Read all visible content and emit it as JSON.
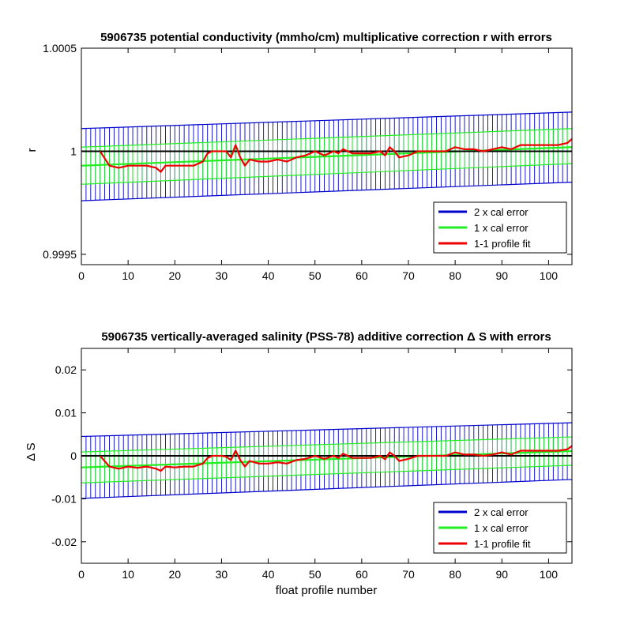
{
  "chart_data": [
    {
      "type": "line",
      "title": "5906735 potential conductivity (mmho/cm) multiplicative correction r with errors",
      "xlabel": "",
      "ylabel": "r",
      "xlim": [
        0,
        105
      ],
      "ylim": [
        0.99945,
        1.0005
      ],
      "xticks": [
        0,
        10,
        20,
        30,
        40,
        50,
        60,
        70,
        80,
        90,
        100
      ],
      "xtick_labels": [
        "0",
        "10",
        "20",
        "30",
        "40",
        "50",
        "60",
        "70",
        "80",
        "90",
        "100"
      ],
      "yticks": [
        0.9995,
        1,
        1.0005
      ],
      "ytick_labels": [
        "0.9995",
        "1",
        "1.0005"
      ],
      "grid": false,
      "legend": "bottom-right",
      "reference_line": 1,
      "series": [
        {
          "name": "2 x cal error",
          "color": "#0000cc",
          "x": [
            0,
            105
          ],
          "lower": [
            0.99976,
            0.99985
          ],
          "upper": [
            1.00011,
            1.00019
          ]
        },
        {
          "name": "1 x cal error",
          "color": "#22ee22",
          "x": [
            0,
            105
          ],
          "center": [
            0.99993,
            1.00002
          ],
          "lower": [
            0.99984,
            0.99994
          ],
          "upper": [
            1.00002,
            1.00011
          ]
        },
        {
          "name": "1-1 profile fit",
          "color": "#ee0000",
          "x": [
            4,
            6,
            8,
            10,
            12,
            14,
            16,
            17,
            18,
            20,
            22,
            24,
            26,
            27,
            28,
            30,
            31,
            32,
            33,
            34,
            35,
            36,
            38,
            40,
            42,
            44,
            46,
            48,
            50,
            52,
            54,
            55,
            56,
            58,
            60,
            62,
            64,
            65,
            66,
            67,
            68,
            70,
            72,
            74,
            76,
            78,
            80,
            82,
            84,
            86,
            88,
            90,
            92,
            94,
            96,
            98,
            100,
            102,
            104,
            105
          ],
          "y": [
            1.0,
            0.99993,
            0.99992,
            0.99993,
            0.99993,
            0.99993,
            0.99992,
            0.9999,
            0.99993,
            0.99993,
            0.99993,
            0.99993,
            0.99995,
            0.99999,
            1.0,
            1.0,
            1.0,
            0.99997,
            1.00003,
            0.99997,
            0.99993,
            0.99996,
            0.99995,
            0.99995,
            0.99996,
            0.99995,
            0.99997,
            0.99998,
            1.0,
            0.99998,
            1.0,
            0.99999,
            1.00001,
            0.99999,
            0.99999,
            0.99999,
            1.0,
            0.99998,
            1.00002,
            1.0,
            0.99997,
            0.99998,
            1.0,
            1.0,
            1.0,
            1.0,
            1.00002,
            1.00001,
            1.00001,
            1.0,
            1.00001,
            1.00002,
            1.00001,
            1.00003,
            1.00003,
            1.00003,
            1.00003,
            1.00003,
            1.00004,
            1.00006
          ]
        }
      ]
    },
    {
      "type": "line",
      "title": "5906735 vertically-averaged salinity (PSS-78) additive correction Δ S with errors",
      "xlabel": "float profile number",
      "ylabel": "Δ S",
      "xlim": [
        0,
        105
      ],
      "ylim": [
        -0.025,
        0.025
      ],
      "xticks": [
        0,
        10,
        20,
        30,
        40,
        50,
        60,
        70,
        80,
        90,
        100
      ],
      "xtick_labels": [
        "0",
        "10",
        "20",
        "30",
        "40",
        "50",
        "60",
        "70",
        "80",
        "90",
        "100"
      ],
      "yticks": [
        -0.02,
        -0.01,
        0,
        0.01,
        0.02
      ],
      "ytick_labels": [
        "-0.02",
        "-0.01",
        "0",
        "0.01",
        "0.02"
      ],
      "grid": false,
      "legend": "bottom-right",
      "reference_line": 0,
      "series": [
        {
          "name": "2 x cal error",
          "color": "#0000cc",
          "x": [
            0,
            105
          ],
          "lower": [
            -0.0099,
            -0.0055
          ],
          "upper": [
            0.0045,
            0.0077
          ]
        },
        {
          "name": "1 x cal error",
          "color": "#22ee22",
          "x": [
            0,
            105
          ],
          "center": [
            -0.0027,
            0.0011
          ],
          "lower": [
            -0.0063,
            -0.0022
          ],
          "upper": [
            0.0009,
            0.0044
          ]
        },
        {
          "name": "1-1 profile fit",
          "color": "#ee0000",
          "x": [
            4,
            6,
            8,
            10,
            12,
            14,
            16,
            17,
            18,
            20,
            22,
            24,
            26,
            27,
            28,
            30,
            31,
            32,
            33,
            34,
            35,
            36,
            38,
            40,
            42,
            44,
            46,
            48,
            50,
            52,
            54,
            55,
            56,
            58,
            60,
            62,
            64,
            65,
            66,
            67,
            68,
            70,
            72,
            74,
            76,
            78,
            80,
            82,
            84,
            86,
            88,
            90,
            92,
            94,
            96,
            98,
            100,
            102,
            104,
            105
          ],
          "y": [
            0.0,
            -0.0025,
            -0.003,
            -0.0025,
            -0.0028,
            -0.0025,
            -0.003,
            -0.0035,
            -0.0025,
            -0.0027,
            -0.0025,
            -0.0025,
            -0.0018,
            -0.0005,
            0.0,
            0.0,
            -0.0002,
            -0.001,
            0.0012,
            -0.001,
            -0.0025,
            -0.0012,
            -0.0018,
            -0.0018,
            -0.0015,
            -0.0018,
            -0.001,
            -0.0007,
            0.0,
            -0.0007,
            0.0,
            -0.0005,
            0.0005,
            -0.0005,
            -0.0005,
            -0.0005,
            0.0,
            -0.0008,
            0.0008,
            0.0,
            -0.0012,
            -0.0007,
            0.0,
            0.0,
            0.0,
            0.0,
            0.0008,
            0.0003,
            0.0003,
            0.0,
            0.0003,
            0.0008,
            0.0003,
            0.0012,
            0.0012,
            0.0012,
            0.0012,
            0.0012,
            0.0015,
            0.0023
          ]
        }
      ]
    }
  ]
}
